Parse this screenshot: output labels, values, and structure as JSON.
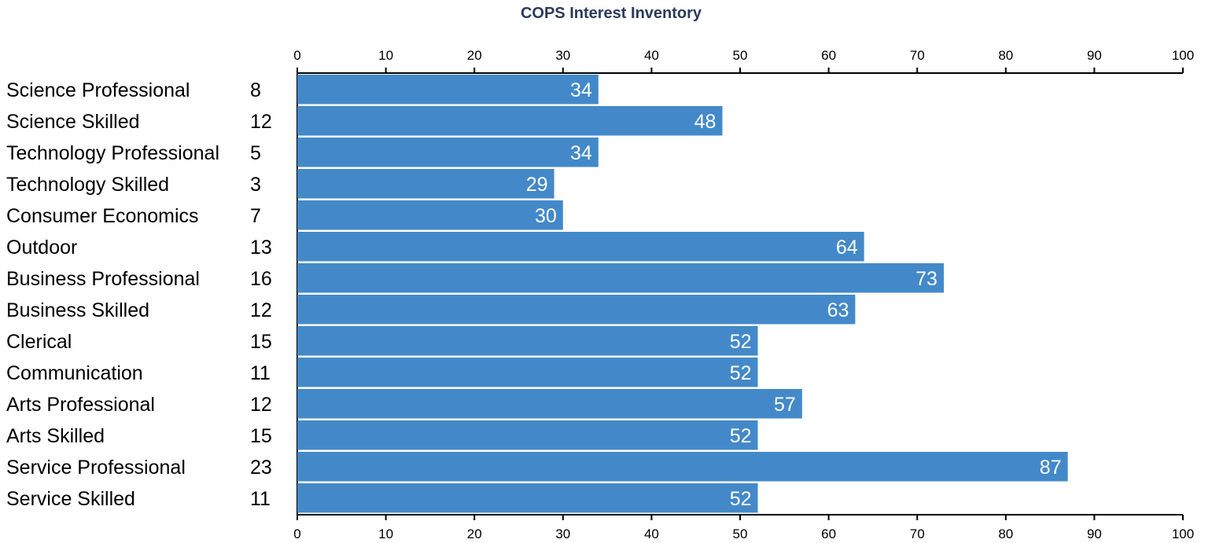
{
  "chart_data": {
    "type": "bar",
    "orientation": "horizontal",
    "title": "COPS Interest Inventory",
    "categories": [
      "Science Professional",
      "Science Skilled",
      "Technology Professional",
      "Technology Skilled",
      "Consumer Economics",
      "Outdoor",
      "Business Professional",
      "Business Skilled",
      "Clerical",
      "Communication",
      "Arts Professional",
      "Arts Skilled",
      "Service Professional",
      "Service Skilled"
    ],
    "raw_scores": [
      8,
      12,
      5,
      3,
      7,
      13,
      16,
      12,
      15,
      11,
      12,
      15,
      23,
      11
    ],
    "values": [
      34,
      48,
      34,
      29,
      30,
      64,
      73,
      63,
      52,
      52,
      57,
      52,
      87,
      52
    ],
    "xlim": [
      0,
      100
    ],
    "xticks": [
      0,
      10,
      20,
      30,
      40,
      50,
      60,
      70,
      80,
      90,
      100
    ],
    "xaxis_position": "top and bottom",
    "grid": false,
    "legend": "none",
    "bar_color": "#4389c9",
    "label_color": "#ffffff"
  }
}
